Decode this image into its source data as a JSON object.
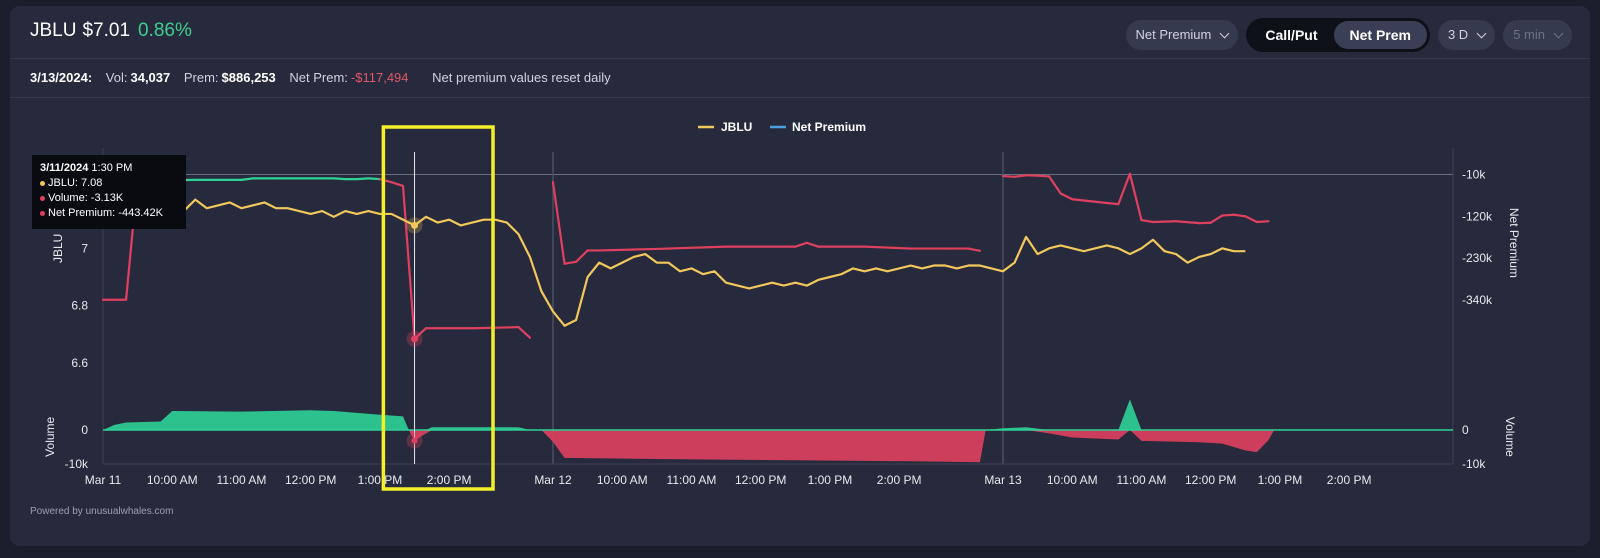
{
  "header": {
    "symbol": "JBLU",
    "price": "$7.01",
    "change": "0.86%",
    "metric_dropdown": "Net Premium",
    "toggle_call_put": "Call/Put",
    "toggle_net_prem": "Net Prem",
    "range_dropdown": "3 D",
    "interval_dropdown": "5 min"
  },
  "stats": {
    "date": "3/13/2024:",
    "vol_label": "Vol:",
    "vol_value": "34,037",
    "prem_label": "Prem:",
    "prem_value": "$886,253",
    "net_label": "Net Prem:",
    "net_value": "-$117,494",
    "note": "Net premium values reset daily"
  },
  "tooltip": {
    "date": "3/11/2024",
    "time": "1:30 PM",
    "line1": "JBLU: 7.08",
    "line2": "Volume: -3.13K",
    "line3": "Net Premium: -443.42K"
  },
  "footer": "Powered by unusualwhales.com",
  "colors": {
    "price": "#f2c75c",
    "net_premium_pos": "#2fd197",
    "net_premium_neg": "#e0405f",
    "legend_net": "#4a9fe0",
    "highlight": "#f3f02a"
  },
  "chart_data": {
    "type": "line",
    "legend": [
      "JBLU",
      "Net Premium"
    ],
    "left_axis_title": "JBLU",
    "right_axis_title": "Net Premium",
    "left_volume_title": "Volume",
    "right_volume_title": "Volume",
    "left_ticks": [
      {
        "v": 6.6,
        "label": "6.6"
      },
      {
        "v": 6.8,
        "label": "6.8"
      },
      {
        "v": 7.0,
        "label": "7"
      }
    ],
    "right_ticks": [
      {
        "v": -10,
        "label": "-10k"
      },
      {
        "v": -120,
        "label": "-120k"
      },
      {
        "v": -230,
        "label": "-230k"
      },
      {
        "v": -340,
        "label": "-340k"
      }
    ],
    "volume_ticks": [
      {
        "v": 0,
        "label": "0"
      },
      {
        "v": -10,
        "label": "-10k"
      }
    ],
    "price_ylim": [
      6.45,
      7.35
    ],
    "premium_ylim": [
      -620,
      60
    ],
    "volume_ylim": [
      -10,
      10
    ],
    "x_ticks": [
      {
        "t": 0,
        "label": "Mar 11"
      },
      {
        "t": 6,
        "label": "10:00 AM"
      },
      {
        "t": 12,
        "label": "11:00 AM"
      },
      {
        "t": 18,
        "label": "12:00 PM"
      },
      {
        "t": 24,
        "label": "1:00 PM"
      },
      {
        "t": 30,
        "label": "2:00 PM"
      },
      {
        "t": 39,
        "label": "Mar 12"
      },
      {
        "t": 45,
        "label": "10:00 AM"
      },
      {
        "t": 51,
        "label": "11:00 AM"
      },
      {
        "t": 57,
        "label": "12:00 PM"
      },
      {
        "t": 63,
        "label": "1:00 PM"
      },
      {
        "t": 69,
        "label": "2:00 PM"
      },
      {
        "t": 78,
        "label": "Mar 13"
      },
      {
        "t": 84,
        "label": "10:00 AM"
      },
      {
        "t": 90,
        "label": "11:00 AM"
      },
      {
        "t": 96,
        "label": "12:00 PM"
      },
      {
        "t": 102,
        "label": "1:00 PM"
      },
      {
        "t": 108,
        "label": "2:00 PM"
      }
    ],
    "x_range": [
      0,
      117
    ],
    "day_dividers": [
      39,
      78
    ],
    "hover_t": 27,
    "price_series": [
      {
        "t": 0,
        "v": 7.17
      },
      {
        "t": 1,
        "v": 7.13
      },
      {
        "t": 2,
        "v": 7.14
      },
      {
        "t": 3,
        "v": 7.17
      },
      {
        "t": 4,
        "v": 7.2
      },
      {
        "t": 5,
        "v": 7.15
      },
      {
        "t": 6,
        "v": 7.11
      },
      {
        "t": 7,
        "v": 7.13
      },
      {
        "t": 8,
        "v": 7.17
      },
      {
        "t": 9,
        "v": 7.14
      },
      {
        "t": 10,
        "v": 7.15
      },
      {
        "t": 11,
        "v": 7.16
      },
      {
        "t": 12,
        "v": 7.14
      },
      {
        "t": 13,
        "v": 7.15
      },
      {
        "t": 14,
        "v": 7.16
      },
      {
        "t": 15,
        "v": 7.14
      },
      {
        "t": 16,
        "v": 7.14
      },
      {
        "t": 17,
        "v": 7.13
      },
      {
        "t": 18,
        "v": 7.12
      },
      {
        "t": 19,
        "v": 7.13
      },
      {
        "t": 20,
        "v": 7.11
      },
      {
        "t": 21,
        "v": 7.13
      },
      {
        "t": 22,
        "v": 7.12
      },
      {
        "t": 23,
        "v": 7.13
      },
      {
        "t": 24,
        "v": 7.12
      },
      {
        "t": 25,
        "v": 7.12
      },
      {
        "t": 26,
        "v": 7.1
      },
      {
        "t": 27,
        "v": 7.08
      },
      {
        "t": 28,
        "v": 7.11
      },
      {
        "t": 29,
        "v": 7.09
      },
      {
        "t": 30,
        "v": 7.1
      },
      {
        "t": 31,
        "v": 7.08
      },
      {
        "t": 32,
        "v": 7.09
      },
      {
        "t": 33,
        "v": 7.1
      },
      {
        "t": 34,
        "v": 7.1
      },
      {
        "t": 35,
        "v": 7.09
      },
      {
        "t": 36,
        "v": 7.05
      },
      {
        "t": 37,
        "v": 6.97
      },
      {
        "t": 38,
        "v": 6.85
      },
      {
        "t": 39,
        "v": 6.78
      },
      {
        "t": 40,
        "v": 6.73
      },
      {
        "t": 41,
        "v": 6.75
      },
      {
        "t": 42,
        "v": 6.9
      },
      {
        "t": 43,
        "v": 6.95
      },
      {
        "t": 44,
        "v": 6.93
      },
      {
        "t": 45,
        "v": 6.95
      },
      {
        "t": 46,
        "v": 6.97
      },
      {
        "t": 47,
        "v": 6.98
      },
      {
        "t": 48,
        "v": 6.95
      },
      {
        "t": 49,
        "v": 6.95
      },
      {
        "t": 50,
        "v": 6.92
      },
      {
        "t": 51,
        "v": 6.93
      },
      {
        "t": 52,
        "v": 6.91
      },
      {
        "t": 53,
        "v": 6.92
      },
      {
        "t": 54,
        "v": 6.88
      },
      {
        "t": 55,
        "v": 6.87
      },
      {
        "t": 56,
        "v": 6.86
      },
      {
        "t": 57,
        "v": 6.87
      },
      {
        "t": 58,
        "v": 6.88
      },
      {
        "t": 59,
        "v": 6.87
      },
      {
        "t": 60,
        "v": 6.88
      },
      {
        "t": 61,
        "v": 6.87
      },
      {
        "t": 62,
        "v": 6.89
      },
      {
        "t": 63,
        "v": 6.9
      },
      {
        "t": 64,
        "v": 6.91
      },
      {
        "t": 65,
        "v": 6.93
      },
      {
        "t": 66,
        "v": 6.92
      },
      {
        "t": 67,
        "v": 6.93
      },
      {
        "t": 68,
        "v": 6.92
      },
      {
        "t": 69,
        "v": 6.93
      },
      {
        "t": 70,
        "v": 6.94
      },
      {
        "t": 71,
        "v": 6.93
      },
      {
        "t": 72,
        "v": 6.94
      },
      {
        "t": 73,
        "v": 6.94
      },
      {
        "t": 74,
        "v": 6.93
      },
      {
        "t": 75,
        "v": 6.94
      },
      {
        "t": 76,
        "v": 6.94
      },
      {
        "t": 77,
        "v": 6.93
      },
      {
        "t": 78,
        "v": 6.92
      },
      {
        "t": 79,
        "v": 6.95
      },
      {
        "t": 80,
        "v": 7.04
      },
      {
        "t": 81,
        "v": 6.98
      },
      {
        "t": 82,
        "v": 7.0
      },
      {
        "t": 83,
        "v": 7.01
      },
      {
        "t": 84,
        "v": 7.0
      },
      {
        "t": 85,
        "v": 6.99
      },
      {
        "t": 86,
        "v": 7.0
      },
      {
        "t": 87,
        "v": 7.01
      },
      {
        "t": 88,
        "v": 7.0
      },
      {
        "t": 89,
        "v": 6.98
      },
      {
        "t": 90,
        "v": 7.0
      },
      {
        "t": 91,
        "v": 7.03
      },
      {
        "t": 92,
        "v": 6.99
      },
      {
        "t": 93,
        "v": 6.98
      },
      {
        "t": 94,
        "v": 6.95
      },
      {
        "t": 95,
        "v": 6.97
      },
      {
        "t": 96,
        "v": 6.98
      },
      {
        "t": 97,
        "v": 7.0
      },
      {
        "t": 98,
        "v": 6.99
      },
      {
        "t": 99,
        "v": 6.99
      }
    ],
    "premium_series": [
      {
        "t": 0,
        "v": -340
      },
      {
        "t": 2,
        "v": -340
      },
      {
        "t": 3,
        "v": -20
      },
      {
        "t": 4,
        "v": -25
      },
      {
        "t": 8,
        "v": -24
      },
      {
        "t": 12,
        "v": -24
      },
      {
        "t": 13,
        "v": -20
      },
      {
        "t": 15,
        "v": -20
      },
      {
        "t": 20,
        "v": -20
      },
      {
        "t": 21,
        "v": -22
      },
      {
        "t": 22,
        "v": -22
      },
      {
        "t": 23,
        "v": -20
      },
      {
        "t": 24,
        "v": -22
      },
      {
        "t": 25,
        "v": -30
      },
      {
        "t": 26,
        "v": -40
      },
      {
        "t": 27,
        "v": -443
      },
      {
        "t": 28,
        "v": -415
      },
      {
        "t": 32,
        "v": -415
      },
      {
        "t": 35,
        "v": -413
      },
      {
        "t": 36,
        "v": -412
      },
      {
        "t": 37,
        "v": -440
      },
      {
        "t": 39,
        "v": -30
      },
      {
        "t": 40,
        "v": -245
      },
      {
        "t": 41,
        "v": -240
      },
      {
        "t": 42,
        "v": -210
      },
      {
        "t": 43,
        "v": -210
      },
      {
        "t": 48,
        "v": -206
      },
      {
        "t": 54,
        "v": -200
      },
      {
        "t": 60,
        "v": -200
      },
      {
        "t": 61,
        "v": -190
      },
      {
        "t": 62,
        "v": -200
      },
      {
        "t": 66,
        "v": -200
      },
      {
        "t": 70,
        "v": -205
      },
      {
        "t": 73,
        "v": -205
      },
      {
        "t": 75,
        "v": -205
      },
      {
        "t": 76,
        "v": -211
      },
      {
        "t": 78,
        "v": -14
      },
      {
        "t": 79,
        "v": -16
      },
      {
        "t": 80,
        "v": -12
      },
      {
        "t": 81,
        "v": -13
      },
      {
        "t": 82,
        "v": -15
      },
      {
        "t": 83,
        "v": -60
      },
      {
        "t": 84,
        "v": -75
      },
      {
        "t": 87,
        "v": -85
      },
      {
        "t": 88,
        "v": -88
      },
      {
        "t": 89,
        "v": -8
      },
      {
        "t": 90,
        "v": -130
      },
      {
        "t": 91,
        "v": -135
      },
      {
        "t": 93,
        "v": -133
      },
      {
        "t": 95,
        "v": -138
      },
      {
        "t": 96,
        "v": -137
      },
      {
        "t": 97,
        "v": -118
      },
      {
        "t": 98,
        "v": -116
      },
      {
        "t": 99,
        "v": -120
      },
      {
        "t": 100,
        "v": -135
      },
      {
        "t": 101,
        "v": -133
      }
    ],
    "volume_series": [
      {
        "t": 0,
        "v": 0
      },
      {
        "t": 1,
        "v": 1.5
      },
      {
        "t": 2,
        "v": 2.2
      },
      {
        "t": 5,
        "v": 2.5
      },
      {
        "t": 6,
        "v": 5.6
      },
      {
        "t": 12,
        "v": 5.4
      },
      {
        "t": 18,
        "v": 5.8
      },
      {
        "t": 20,
        "v": 5.6
      },
      {
        "t": 24,
        "v": 4.5
      },
      {
        "t": 26,
        "v": 4.0
      },
      {
        "t": 26.5,
        "v": 0
      },
      {
        "t": 27,
        "v": -3.13
      },
      {
        "t": 28,
        "v": -1.0
      },
      {
        "t": 28.5,
        "v": 0.8
      },
      {
        "t": 36,
        "v": 0.8
      },
      {
        "t": 37,
        "v": 0
      },
      {
        "t": 38,
        "v": 0
      },
      {
        "t": 39,
        "v": -3.5
      },
      {
        "t": 40,
        "v": -8.2
      },
      {
        "t": 50,
        "v": -8.6
      },
      {
        "t": 60,
        "v": -8.9
      },
      {
        "t": 70,
        "v": -9.2
      },
      {
        "t": 76,
        "v": -9.5
      },
      {
        "t": 76.5,
        "v": 0
      },
      {
        "t": 78,
        "v": 0.5
      },
      {
        "t": 80,
        "v": 0.8
      },
      {
        "t": 82,
        "v": -1.0
      },
      {
        "t": 84,
        "v": -2.2
      },
      {
        "t": 88,
        "v": -2.8
      },
      {
        "t": 89,
        "v": 9.0
      },
      {
        "t": 90,
        "v": -3.2
      },
      {
        "t": 95,
        "v": -3.6
      },
      {
        "t": 97,
        "v": -4.0
      },
      {
        "t": 99,
        "v": -6.0
      },
      {
        "t": 100,
        "v": -6.5
      },
      {
        "t": 101,
        "v": -3.0
      },
      {
        "t": 101.5,
        "v": 0
      },
      {
        "t": 117,
        "v": 0
      }
    ]
  }
}
